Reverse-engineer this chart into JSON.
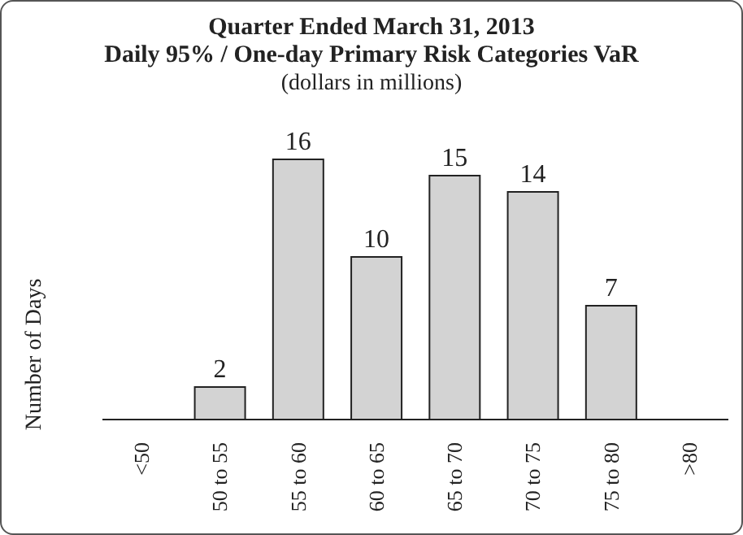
{
  "chart_data": {
    "type": "bar",
    "title": "Quarter Ended March 31, 2013",
    "subtitle": "Daily 95% / One-day Primary Risk Categories VaR",
    "annotations": [
      "(dollars in millions)"
    ],
    "ylabel": "Number of Days",
    "categories": [
      "<50",
      "50 to 55",
      "55 to 60",
      "60 to 65",
      "65 to 70",
      "70 to 75",
      "75 to 80",
      ">80"
    ],
    "values": [
      0,
      2,
      16,
      10,
      15,
      14,
      7,
      0
    ],
    "value_labels": [
      null,
      "2",
      "16",
      "10",
      "15",
      "14",
      "7",
      null
    ],
    "color": "#d3d3d3",
    "grid": false,
    "legend": false
  }
}
